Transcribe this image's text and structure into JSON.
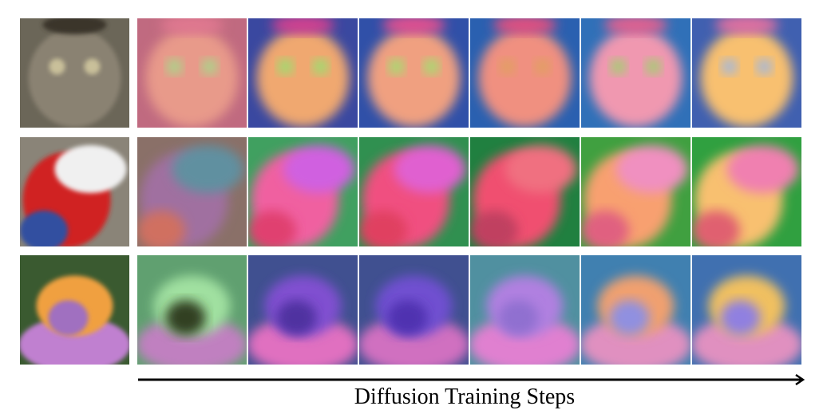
{
  "figure": {
    "arrow_label": "Diffusion Training Steps"
  }
}
